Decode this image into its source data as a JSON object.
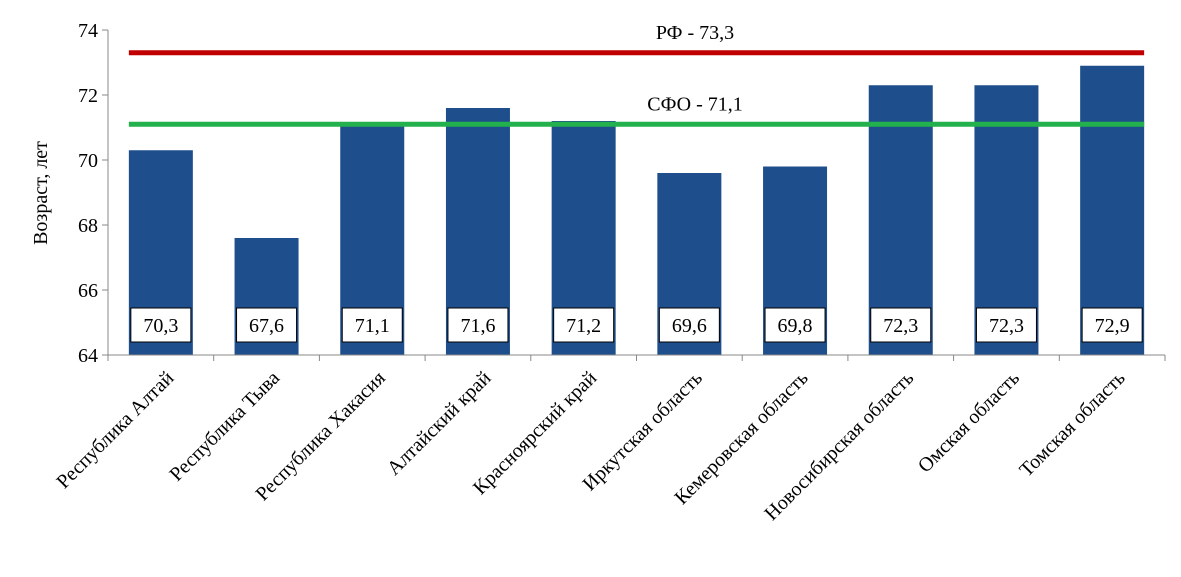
{
  "chart_data": {
    "type": "bar",
    "title": "",
    "xlabel": "",
    "ylabel": "Возраст, лет",
    "ylim": [
      64,
      74
    ],
    "yticks": [
      "64",
      "66",
      "68",
      "70",
      "72",
      "74"
    ],
    "grid": false,
    "categories": [
      "Республика Алтай",
      "Республика Тыва",
      "Республика Хакасия",
      "Алтайский край",
      "Красноярский край",
      "Иркутская область",
      "Кемеровская область",
      "Новосибирская область",
      "Омская область",
      "Томская область"
    ],
    "values": [
      70.3,
      67.6,
      71.1,
      71.6,
      71.2,
      69.6,
      69.8,
      72.3,
      72.3,
      72.9
    ],
    "value_labels": [
      "70,3",
      "67,6",
      "71,1",
      "71,6",
      "71,2",
      "69,6",
      "69,8",
      "72,3",
      "72,3",
      "72,9"
    ],
    "bar_color": "#1F4E8C",
    "reference_lines": [
      {
        "label": "РФ - 73,3",
        "value": 73.3,
        "color": "#C00000"
      },
      {
        "label": "СФО - 71,1",
        "value": 71.1,
        "color": "#22B14C"
      }
    ]
  }
}
